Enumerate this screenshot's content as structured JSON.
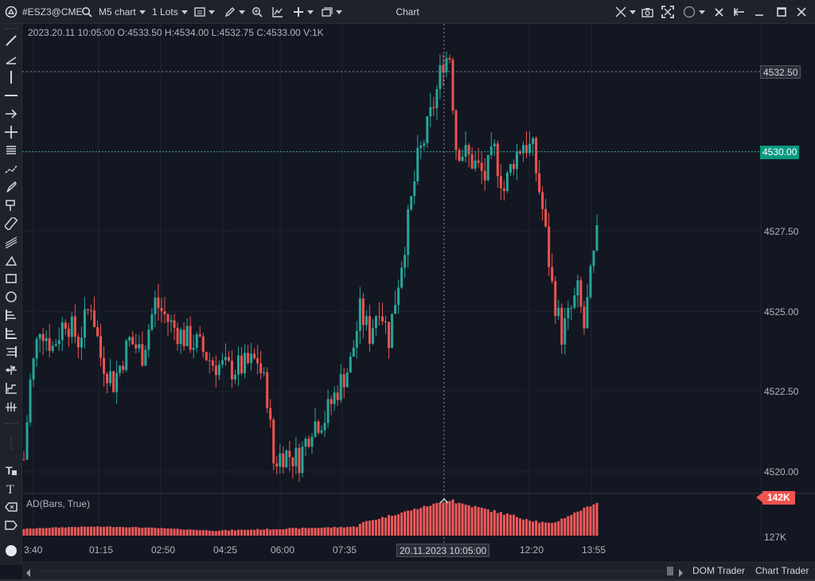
{
  "toolbar": {
    "symbol": "#ESZ3@CME",
    "timeframe": "M5 chart",
    "lots": "1 Lots",
    "window_title": "Chart"
  },
  "ohlc_info": "2023.20.11 10:05:00 O:4533.50 H:4534.00 L:4532.75 C:4533.00 V:1K",
  "price_axis": {
    "labels": [
      "4532.50",
      "4530.00",
      "4527.50",
      "4525.00",
      "4522.50",
      "4520.00"
    ],
    "crosshair_price": "4532.50",
    "last_price": "4530.00"
  },
  "indicator": {
    "label": "AD(Bars, True)",
    "value_tag": "142K",
    "axis_label": "127K"
  },
  "time_axis": {
    "labels": [
      "3:40",
      "01:15",
      "02:50",
      "04:25",
      "06:00",
      "07:35",
      "12:20",
      "13:55"
    ],
    "crosshair_time": "20.11.2023 10:05:00"
  },
  "bottom_tabs": [
    "DOM Trader",
    "Chart Trader"
  ],
  "colors": {
    "background": "#131722",
    "up": "#26a69a",
    "down": "#ef5350",
    "volume": "#f05a5a",
    "last_price_tag": "#089981",
    "crosshair_tag": "#2a2e39"
  }
}
